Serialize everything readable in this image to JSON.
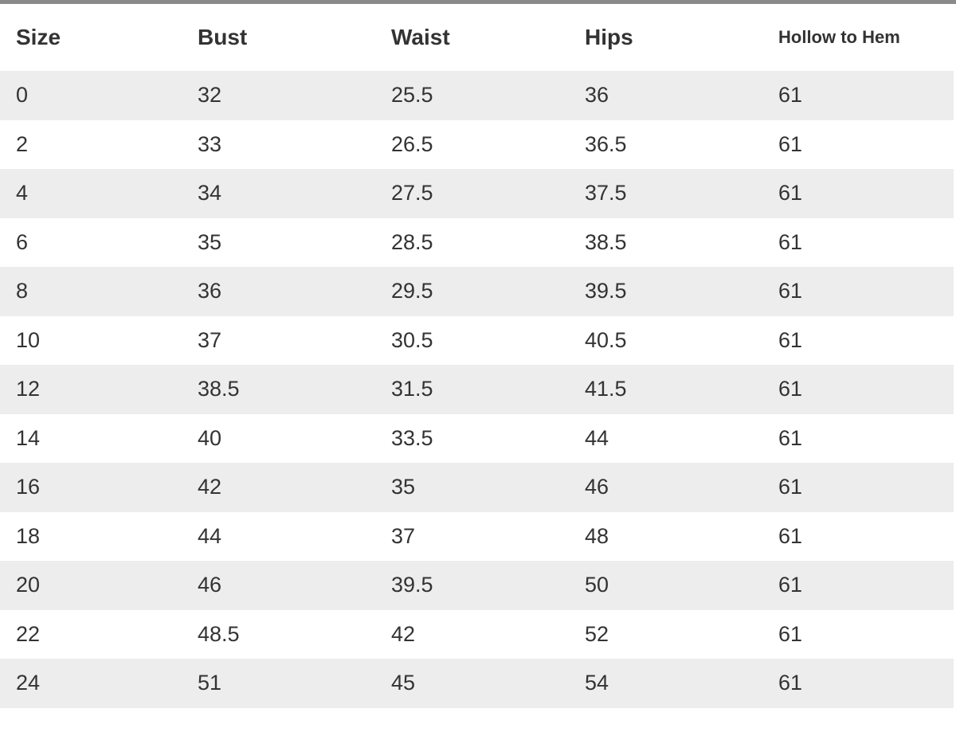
{
  "table": {
    "headers": [
      "Size",
      "Bust",
      "Waist",
      "Hips",
      "Hollow to Hem"
    ],
    "rows": [
      [
        "0",
        "32",
        "25.5",
        "36",
        "61"
      ],
      [
        "2",
        "33",
        "26.5",
        "36.5",
        "61"
      ],
      [
        "4",
        "34",
        "27.5",
        "37.5",
        "61"
      ],
      [
        "6",
        "35",
        "28.5",
        "38.5",
        "61"
      ],
      [
        "8",
        "36",
        "29.5",
        "39.5",
        "61"
      ],
      [
        "10",
        "37",
        "30.5",
        "40.5",
        "61"
      ],
      [
        "12",
        "38.5",
        "31.5",
        "41.5",
        "61"
      ],
      [
        "14",
        "40",
        "33.5",
        "44",
        "61"
      ],
      [
        "16",
        "42",
        "35",
        "46",
        "61"
      ],
      [
        "18",
        "44",
        "37",
        "48",
        "61"
      ],
      [
        "20",
        "46",
        "39.5",
        "50",
        "61"
      ],
      [
        "22",
        "48.5",
        "42",
        "52",
        "61"
      ],
      [
        "24",
        "51",
        "45",
        "54",
        "61"
      ]
    ]
  }
}
